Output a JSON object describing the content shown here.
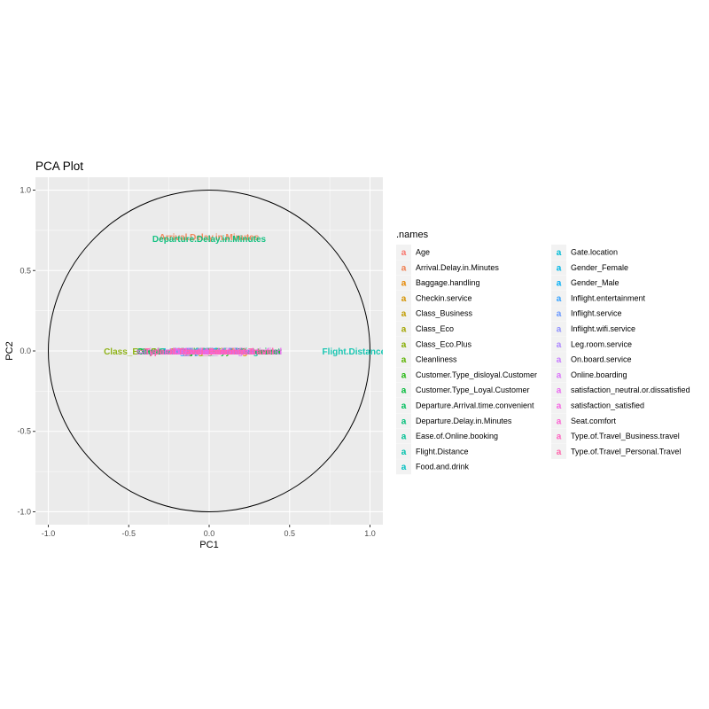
{
  "chart_data": {
    "type": "scatter",
    "title": "PCA Plot",
    "xlabel": "PC1",
    "ylabel": "PC2",
    "xlim": [
      -1.08,
      1.08
    ],
    "ylim": [
      -1.08,
      1.08
    ],
    "x_ticks": [
      -1.0,
      -0.5,
      0.0,
      0.5,
      1.0
    ],
    "x_tick_labels": [
      "-1.0",
      "-0.5",
      "0.0",
      "0.5",
      "1.0"
    ],
    "y_ticks": [
      1.0,
      0.5,
      0.0,
      -0.5,
      -1.0
    ],
    "y_tick_labels": [
      "1.0",
      "0.5",
      "0.0",
      "-0.5",
      "-1.0"
    ],
    "grid": true,
    "unit_circle": true,
    "legend_title": ".names",
    "legend_position": "right",
    "legend_key_glyph": "a",
    "points": [
      {
        "name": "Age",
        "x": 0.0,
        "y": 0.0,
        "color": "#F8766D"
      },
      {
        "name": "Arrival.Delay.in.Minutes",
        "x": 0.0,
        "y": 0.71,
        "color": "#F07E4F"
      },
      {
        "name": "Baggage.handling",
        "x": 0.0,
        "y": 0.0,
        "color": "#E58700"
      },
      {
        "name": "Checkin.service",
        "x": 0.0,
        "y": 0.0,
        "color": "#D49200"
      },
      {
        "name": "Class_Business",
        "x": 0.0,
        "y": 0.0,
        "color": "#C09B00"
      },
      {
        "name": "Class_Eco",
        "x": 0.0,
        "y": 0.0,
        "color": "#A3A500"
      },
      {
        "name": "Class_Eco.Plus",
        "x": -0.45,
        "y": 0.0,
        "color": "#84AC00"
      },
      {
        "name": "Cleanliness",
        "x": 0.0,
        "y": 0.0,
        "color": "#5BB300"
      },
      {
        "name": "Customer.Type_disloyal.Customer",
        "x": 0.0,
        "y": 0.0,
        "color": "#21B70D"
      },
      {
        "name": "Customer.Type_Loyal.Customer",
        "x": 0.0,
        "y": 0.0,
        "color": "#00BA38"
      },
      {
        "name": "Departure.Arrival.time.convenient",
        "x": 0.0,
        "y": 0.0,
        "color": "#00BD5C"
      },
      {
        "name": "Departure.Delay.in.Minutes",
        "x": 0.0,
        "y": 0.7,
        "color": "#00BE78"
      },
      {
        "name": "Ease.of.Online.booking",
        "x": 0.0,
        "y": 0.0,
        "color": "#00C094"
      },
      {
        "name": "Flight.Distance",
        "x": 0.9,
        "y": 0.0,
        "color": "#00C1AB"
      },
      {
        "name": "Food.and.drink",
        "x": 0.0,
        "y": 0.0,
        "color": "#00C0C1"
      },
      {
        "name": "Gate.location",
        "x": 0.0,
        "y": 0.0,
        "color": "#00BCD6"
      },
      {
        "name": "Gender_Female",
        "x": 0.0,
        "y": 0.0,
        "color": "#00B6E6"
      },
      {
        "name": "Gender_Male",
        "x": 0.0,
        "y": 0.0,
        "color": "#00AEF6"
      },
      {
        "name": "Inflight.entertainment",
        "x": 0.0,
        "y": 0.0,
        "color": "#35A2FF"
      },
      {
        "name": "Inflight.service",
        "x": 0.0,
        "y": 0.0,
        "color": "#6998FF"
      },
      {
        "name": "Inflight.wifi.service",
        "x": 0.0,
        "y": 0.0,
        "color": "#8F91FF"
      },
      {
        "name": "Leg.room.service",
        "x": 0.0,
        "y": 0.0,
        "color": "#AD87FF"
      },
      {
        "name": "On.board.service",
        "x": 0.0,
        "y": 0.0,
        "color": "#C77CFF"
      },
      {
        "name": "Online.boarding",
        "x": 0.0,
        "y": 0.0,
        "color": "#DA72FB"
      },
      {
        "name": "satisfaction_neutral.or.dissatisfied",
        "x": 0.0,
        "y": 0.0,
        "color": "#EA68F0"
      },
      {
        "name": "satisfaction_satisfied",
        "x": 0.0,
        "y": 0.0,
        "color": "#F563E3"
      },
      {
        "name": "Seat.comfort",
        "x": 0.0,
        "y": 0.0,
        "color": "#FC61D2"
      },
      {
        "name": "Type.of.Travel_Business.travel",
        "x": 0.0,
        "y": 0.0,
        "color": "#FF61C0"
      },
      {
        "name": "Type.of.Travel_Personal.Travel",
        "x": 0.0,
        "y": 0.0,
        "color": "#FF65AB"
      }
    ]
  }
}
